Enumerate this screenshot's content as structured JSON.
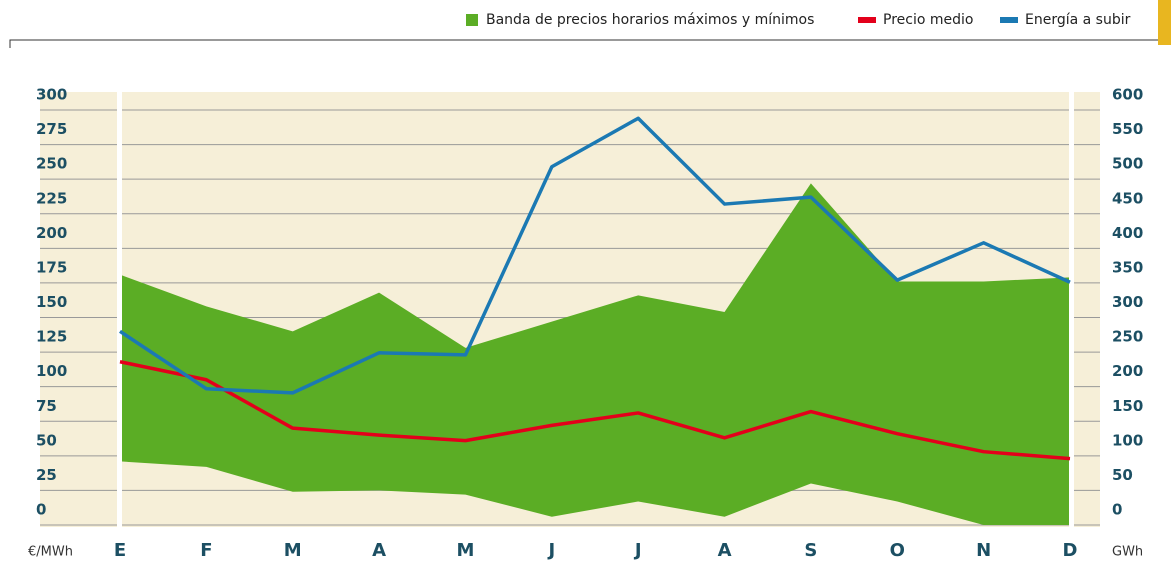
{
  "chart_data": {
    "type": "line",
    "legend_position": "top-right",
    "y_label": "€/MWh",
    "y2_label": "GWh",
    "categories": [
      "E",
      "F",
      "M",
      "A",
      "M",
      "J",
      "J",
      "A",
      "S",
      "O",
      "N",
      "D"
    ],
    "band": {
      "name": "Banda de precios horarios máximos y mínimos",
      "color": "#5bad25",
      "upper": [
        181,
        158,
        140,
        168,
        128,
        147,
        166,
        154,
        247,
        176,
        176,
        179
      ],
      "lower": [
        46,
        42,
        24,
        25,
        22,
        6,
        17,
        6,
        30,
        17,
        0,
        0
      ]
    },
    "series": [
      {
        "name": "Precio medio",
        "color": "#e3001b",
        "values": [
          118,
          105,
          70,
          65,
          61,
          72,
          81,
          63,
          82,
          66,
          53,
          48
        ]
      },
      {
        "name": "Energía a subir",
        "color": "#1b79b3",
        "axis": "y2",
        "values": [
          280,
          197,
          191,
          249,
          246,
          518,
          588,
          464,
          474,
          354,
          408,
          351
        ]
      }
    ],
    "ylim": [
      0,
      300
    ],
    "yticks": [
      0,
      25,
      50,
      75,
      100,
      125,
      150,
      175,
      200,
      225,
      250,
      275,
      300
    ],
    "y2lim": [
      0,
      600
    ],
    "y2ticks": [
      0,
      50,
      100,
      150,
      200,
      250,
      300,
      350,
      400,
      450,
      500,
      550,
      600
    ],
    "grid": true
  }
}
